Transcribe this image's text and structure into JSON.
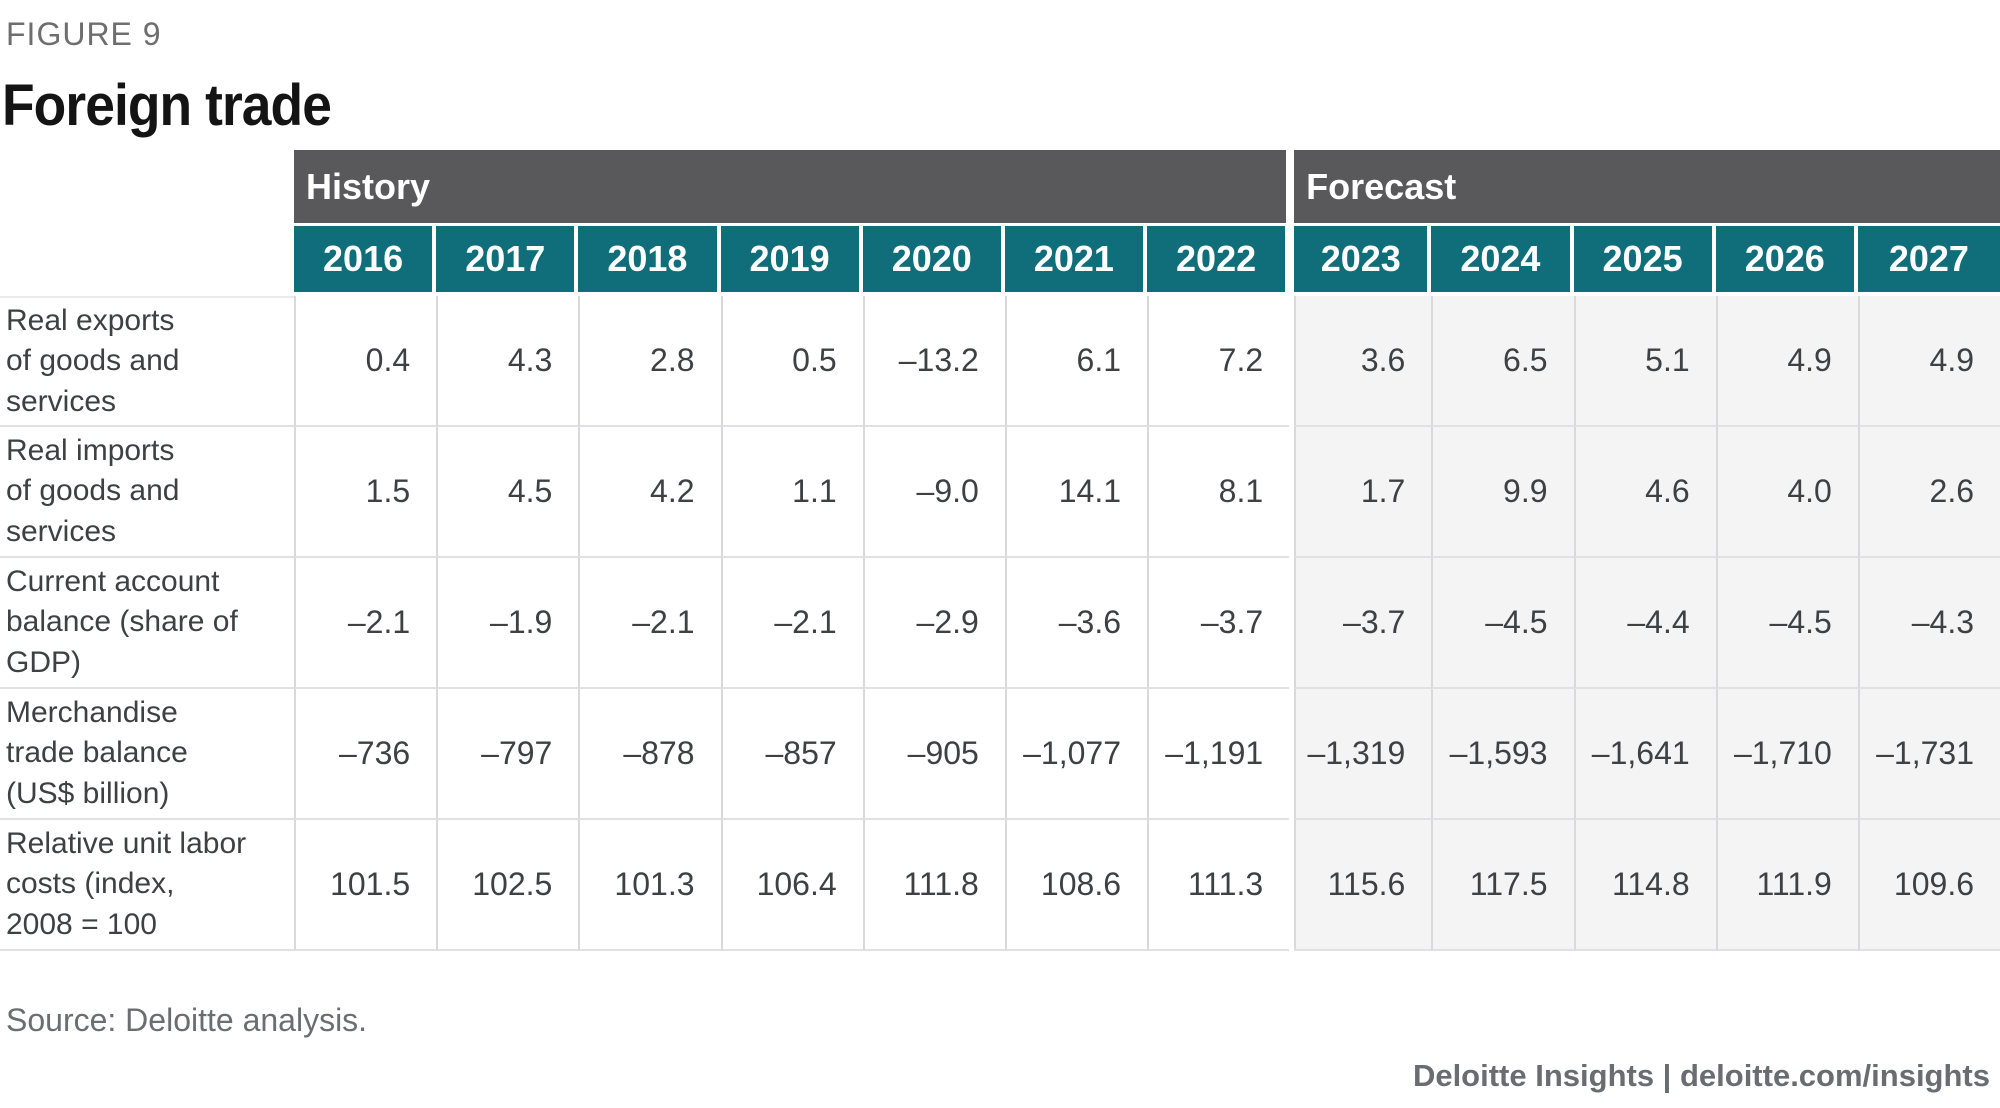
{
  "figure_label": "FIGURE 9",
  "title": "Foreign trade",
  "source": "Source: Deloitte analysis.",
  "footer": {
    "credit": "Deloitte Insights | deloitte.com/insights"
  },
  "colors": {
    "header_teal": "#0F6E79",
    "header_gray": "#59585B",
    "forecast_background": "#F4F4F5",
    "text": "#3E4042"
  },
  "table": {
    "sections": [
      {
        "label": "History",
        "span": 7
      },
      {
        "label": "Forecast",
        "span": 5
      }
    ],
    "years": [
      "2016",
      "2017",
      "2018",
      "2019",
      "2020",
      "2021",
      "2022",
      "2023",
      "2024",
      "2025",
      "2026",
      "2027"
    ],
    "history_count": 7,
    "rows": [
      {
        "label": "Real exports of goods and services",
        "label_lines": [
          "Real exports",
          "of goods and",
          "services"
        ],
        "values": [
          "0.4",
          "4.3",
          "2.8",
          "0.5",
          "–13.2",
          "6.1",
          "7.2",
          "3.6",
          "6.5",
          "5.1",
          "4.9",
          "4.9"
        ]
      },
      {
        "label": "Real imports of goods and services",
        "label_lines": [
          "Real imports",
          "of goods and",
          "services"
        ],
        "values": [
          "1.5",
          "4.5",
          "4.2",
          "1.1",
          "–9.0",
          "14.1",
          "8.1",
          "1.7",
          "9.9",
          "4.6",
          "4.0",
          "2.6"
        ]
      },
      {
        "label": "Current account balance (share of GDP)",
        "label_lines": [
          "Current account",
          "balance (share of",
          "GDP)"
        ],
        "values": [
          "–2.1",
          "–1.9",
          "–2.1",
          "–2.1",
          "–2.9",
          "–3.6",
          "–3.7",
          "–3.7",
          "–4.5",
          "–4.4",
          "–4.5",
          "–4.3"
        ]
      },
      {
        "label": "Merchandise trade balance (US$ billion)",
        "label_lines": [
          "Merchandise",
          "trade balance",
          "(US$ billion)"
        ],
        "values": [
          "–736",
          "–797",
          "–878",
          "–857",
          "–905",
          "–1,077",
          "–1,191",
          "–1,319",
          "–1,593",
          "–1,641",
          "–1,710",
          "–1,731"
        ]
      },
      {
        "label": "Relative unit labor costs (index, 2008 = 100",
        "label_lines": [
          "Relative unit labor",
          "costs (index,",
          "2008 = 100"
        ],
        "values": [
          "101.5",
          "102.5",
          "101.3",
          "106.4",
          "111.8",
          "108.6",
          "111.3",
          "115.6",
          "117.5",
          "114.8",
          "111.9",
          "109.6"
        ]
      }
    ]
  },
  "chart_data": {
    "type": "table",
    "title": "Foreign trade",
    "figure": "FIGURE 9",
    "categories": [
      "2016",
      "2017",
      "2018",
      "2019",
      "2020",
      "2021",
      "2022",
      "2023",
      "2024",
      "2025",
      "2026",
      "2027"
    ],
    "sections": {
      "History": [
        "2016",
        "2022"
      ],
      "Forecast": [
        "2023",
        "2027"
      ]
    },
    "series": [
      {
        "name": "Real exports of goods and services",
        "values": [
          0.4,
          4.3,
          2.8,
          0.5,
          -13.2,
          6.1,
          7.2,
          3.6,
          6.5,
          5.1,
          4.9,
          4.9
        ]
      },
      {
        "name": "Real imports of goods and services",
        "values": [
          1.5,
          4.5,
          4.2,
          1.1,
          -9.0,
          14.1,
          8.1,
          1.7,
          9.9,
          4.6,
          4.0,
          2.6
        ]
      },
      {
        "name": "Current account balance (share of GDP)",
        "values": [
          -2.1,
          -1.9,
          -2.1,
          -2.1,
          -2.9,
          -3.6,
          -3.7,
          -3.7,
          -4.5,
          -4.4,
          -4.5,
          -4.3
        ]
      },
      {
        "name": "Merchandise trade balance (US$ billion)",
        "values": [
          -736,
          -797,
          -878,
          -857,
          -905,
          -1077,
          -1191,
          -1319,
          -1593,
          -1641,
          -1710,
          -1731
        ]
      },
      {
        "name": "Relative unit labor costs (index, 2008 = 100",
        "values": [
          101.5,
          102.5,
          101.3,
          106.4,
          111.8,
          108.6,
          111.3,
          115.6,
          117.5,
          114.8,
          111.9,
          109.6
        ]
      }
    ],
    "source": "Source: Deloitte analysis.",
    "footer": "Deloitte Insights | deloitte.com/insights"
  }
}
